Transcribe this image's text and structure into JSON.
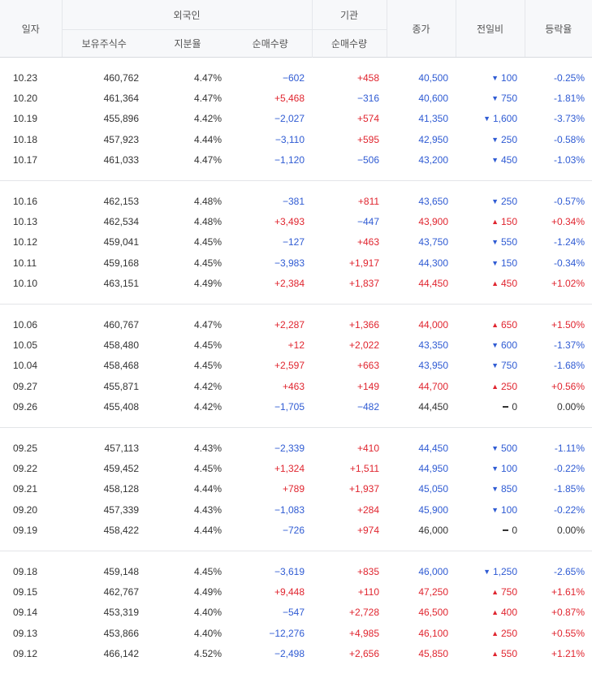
{
  "headers": {
    "date": "일자",
    "foreign": "외국인",
    "institution": "기관",
    "holdings": "보유주식수",
    "share": "지분율",
    "foreign_net": "순매수량",
    "inst_net": "순매수량",
    "close": "종가",
    "change": "전일비",
    "rate": "등락율"
  },
  "groups": [
    [
      {
        "date": "10.23",
        "holdings": "460,762",
        "share": "4.47%",
        "fnet": "−602",
        "inet": "+458",
        "close": "40,500",
        "dir": "down",
        "change": "100",
        "rate": "-0.25%"
      },
      {
        "date": "10.20",
        "holdings": "461,364",
        "share": "4.47%",
        "fnet": "+5,468",
        "inet": "−316",
        "close": "40,600",
        "dir": "down",
        "change": "750",
        "rate": "-1.81%"
      },
      {
        "date": "10.19",
        "holdings": "455,896",
        "share": "4.42%",
        "fnet": "−2,027",
        "inet": "+574",
        "close": "41,350",
        "dir": "down",
        "change": "1,600",
        "rate": "-3.73%"
      },
      {
        "date": "10.18",
        "holdings": "457,923",
        "share": "4.44%",
        "fnet": "−3,110",
        "inet": "+595",
        "close": "42,950",
        "dir": "down",
        "change": "250",
        "rate": "-0.58%"
      },
      {
        "date": "10.17",
        "holdings": "461,033",
        "share": "4.47%",
        "fnet": "−1,120",
        "inet": "−506",
        "close": "43,200",
        "dir": "down",
        "change": "450",
        "rate": "-1.03%"
      }
    ],
    [
      {
        "date": "10.16",
        "holdings": "462,153",
        "share": "4.48%",
        "fnet": "−381",
        "inet": "+811",
        "close": "43,650",
        "dir": "down",
        "change": "250",
        "rate": "-0.57%"
      },
      {
        "date": "10.13",
        "holdings": "462,534",
        "share": "4.48%",
        "fnet": "+3,493",
        "inet": "−447",
        "close": "43,900",
        "dir": "up",
        "change": "150",
        "rate": "+0.34%"
      },
      {
        "date": "10.12",
        "holdings": "459,041",
        "share": "4.45%",
        "fnet": "−127",
        "inet": "+463",
        "close": "43,750",
        "dir": "down",
        "change": "550",
        "rate": "-1.24%"
      },
      {
        "date": "10.11",
        "holdings": "459,168",
        "share": "4.45%",
        "fnet": "−3,983",
        "inet": "+1,917",
        "close": "44,300",
        "dir": "down",
        "change": "150",
        "rate": "-0.34%"
      },
      {
        "date": "10.10",
        "holdings": "463,151",
        "share": "4.49%",
        "fnet": "+2,384",
        "inet": "+1,837",
        "close": "44,450",
        "dir": "up",
        "change": "450",
        "rate": "+1.02%"
      }
    ],
    [
      {
        "date": "10.06",
        "holdings": "460,767",
        "share": "4.47%",
        "fnet": "+2,287",
        "inet": "+1,366",
        "close": "44,000",
        "dir": "up",
        "change": "650",
        "rate": "+1.50%"
      },
      {
        "date": "10.05",
        "holdings": "458,480",
        "share": "4.45%",
        "fnet": "+12",
        "inet": "+2,022",
        "close": "43,350",
        "dir": "down",
        "change": "600",
        "rate": "-1.37%"
      },
      {
        "date": "10.04",
        "holdings": "458,468",
        "share": "4.45%",
        "fnet": "+2,597",
        "inet": "+663",
        "close": "43,950",
        "dir": "down",
        "change": "750",
        "rate": "-1.68%"
      },
      {
        "date": "09.27",
        "holdings": "455,871",
        "share": "4.42%",
        "fnet": "+463",
        "inet": "+149",
        "close": "44,700",
        "dir": "up",
        "change": "250",
        "rate": "+0.56%"
      },
      {
        "date": "09.26",
        "holdings": "455,408",
        "share": "4.42%",
        "fnet": "−1,705",
        "inet": "−482",
        "close": "44,450",
        "dir": "flat",
        "change": "0",
        "rate": "0.00%"
      }
    ],
    [
      {
        "date": "09.25",
        "holdings": "457,113",
        "share": "4.43%",
        "fnet": "−2,339",
        "inet": "+410",
        "close": "44,450",
        "dir": "down",
        "change": "500",
        "rate": "-1.11%"
      },
      {
        "date": "09.22",
        "holdings": "459,452",
        "share": "4.45%",
        "fnet": "+1,324",
        "inet": "+1,511",
        "close": "44,950",
        "dir": "down",
        "change": "100",
        "rate": "-0.22%"
      },
      {
        "date": "09.21",
        "holdings": "458,128",
        "share": "4.44%",
        "fnet": "+789",
        "inet": "+1,937",
        "close": "45,050",
        "dir": "down",
        "change": "850",
        "rate": "-1.85%"
      },
      {
        "date": "09.20",
        "holdings": "457,339",
        "share": "4.43%",
        "fnet": "−1,083",
        "inet": "+284",
        "close": "45,900",
        "dir": "down",
        "change": "100",
        "rate": "-0.22%"
      },
      {
        "date": "09.19",
        "holdings": "458,422",
        "share": "4.44%",
        "fnet": "−726",
        "inet": "+974",
        "close": "46,000",
        "dir": "flat",
        "change": "0",
        "rate": "0.00%"
      }
    ],
    [
      {
        "date": "09.18",
        "holdings": "459,148",
        "share": "4.45%",
        "fnet": "−3,619",
        "inet": "+835",
        "close": "46,000",
        "dir": "down",
        "change": "1,250",
        "rate": "-2.65%"
      },
      {
        "date": "09.15",
        "holdings": "462,767",
        "share": "4.49%",
        "fnet": "+9,448",
        "inet": "+110",
        "close": "47,250",
        "dir": "up",
        "change": "750",
        "rate": "+1.61%"
      },
      {
        "date": "09.14",
        "holdings": "453,319",
        "share": "4.40%",
        "fnet": "−547",
        "inet": "+2,728",
        "close": "46,500",
        "dir": "up",
        "change": "400",
        "rate": "+0.87%"
      },
      {
        "date": "09.13",
        "holdings": "453,866",
        "share": "4.40%",
        "fnet": "−12,276",
        "inet": "+4,985",
        "close": "46,100",
        "dir": "up",
        "change": "250",
        "rate": "+0.55%"
      },
      {
        "date": "09.12",
        "holdings": "466,142",
        "share": "4.52%",
        "fnet": "−2,498",
        "inet": "+2,656",
        "close": "45,850",
        "dir": "up",
        "change": "550",
        "rate": "+1.21%"
      }
    ]
  ]
}
